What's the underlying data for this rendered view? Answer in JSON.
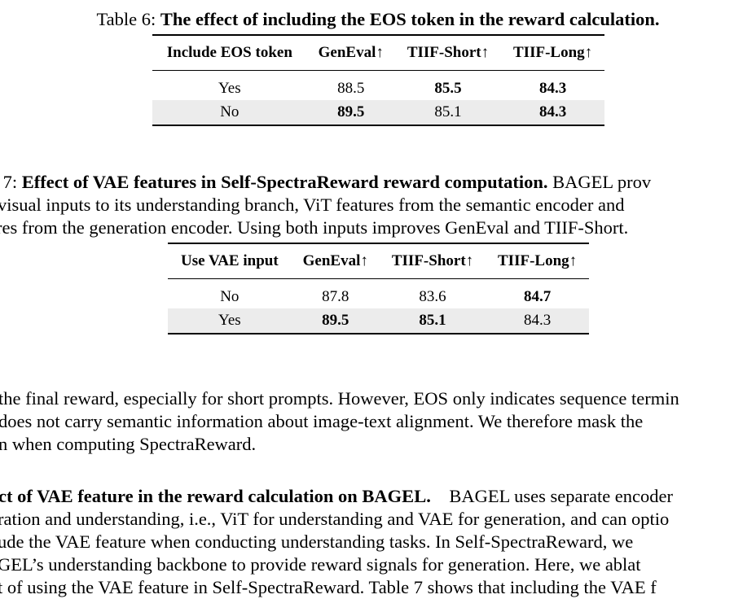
{
  "table6": {
    "caption_prefix": "Table 6:",
    "caption_title": "The effect of including the EOS token in the reward calculation.",
    "headers": [
      "Include EOS token",
      "GenEval↑",
      "TIIF-Short↑",
      "TIIF-Long↑"
    ],
    "rows": [
      {
        "label": "Yes",
        "geneval": "88.5",
        "tiif_short": "85.5",
        "tiif_long": "84.3"
      },
      {
        "label": "No",
        "geneval": "89.5",
        "tiif_short": "85.1",
        "tiif_long": "84.3"
      }
    ]
  },
  "table7": {
    "caption_line1_prefix": "e 7:",
    "caption_line1_title": "Effect of VAE features in Self-SpectraReward reward computation.",
    "caption_line1_rest": "BAGEL prov",
    "caption_line2": "visual inputs to its understanding branch, ViT features from the semantic encoder and",
    "caption_line3": "res from the generation encoder. Using both inputs improves GenEval and TIIF-Short.",
    "headers": [
      "Use VAE input",
      "GenEval↑",
      "TIIF-Short↑",
      "TIIF-Long↑"
    ],
    "rows": [
      {
        "label": "No",
        "geneval": "87.8",
        "tiif_short": "83.6",
        "tiif_long": "84.7"
      },
      {
        "label": "Yes",
        "geneval": "89.5",
        "tiif_short": "85.1",
        "tiif_long": "84.3"
      }
    ]
  },
  "body": {
    "para1": [
      "the final reward, especially for short prompts. However, EOS only indicates sequence termin",
      "does not carry semantic information about image-text alignment. We therefore mask the",
      "n when computing SpectraReward."
    ],
    "para2_heading": "ct of VAE feature in the reward calculation on BAGEL.",
    "para2_line1_rest": "BAGEL uses separate encoder",
    "para2": [
      "ration and understanding, i.e., ViT for understanding and VAE for generation, and can optio",
      "ude the VAE feature when conducting understanding tasks. In Self-SpectraReward, we",
      "GEL’s understanding backbone to provide reward signals for generation. Here, we ablat",
      "t of using the VAE feature in Self-SpectraReward. Table 7 shows that including the VAE f"
    ]
  }
}
